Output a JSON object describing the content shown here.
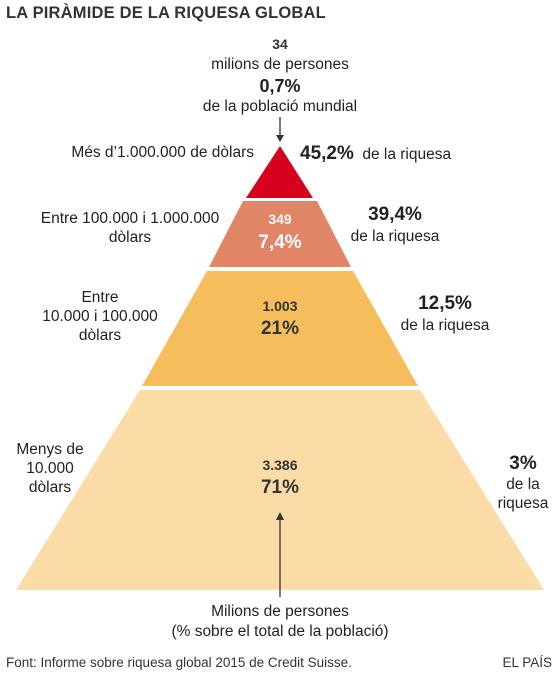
{
  "title": "LA PIRÀMIDE DE LA RIQUESA GLOBAL",
  "top_annotation": {
    "count": "34",
    "count_unit": "milions de persones",
    "share": "0,7%",
    "share_label": "de la població mundial"
  },
  "tiers": [
    {
      "wealth_range": "Més d’1.000.000 de dòlars",
      "wealth_share": "45,2%",
      "wealth_share_label": "de la riquesa",
      "color": "#d7001d"
    },
    {
      "wealth_range_line1": "Entre 100.000 i 1.000.000",
      "wealth_range_line2": "dòlars",
      "population": "349",
      "population_share": "7,4%",
      "wealth_share": "39,4%",
      "wealth_share_label": "de la riquesa",
      "color": "#e08566"
    },
    {
      "wealth_range_line1": "Entre",
      "wealth_range_line2": "10.000 i 100.000",
      "wealth_range_line3": "dòlars",
      "population": "1.003",
      "population_share": "21%",
      "wealth_share": "12,5%",
      "wealth_share_label": "de la riquesa",
      "color": "#f6bd5c"
    },
    {
      "wealth_range_line1": "Menys de",
      "wealth_range_line2": "10.000",
      "wealth_range_line3": "dòlars",
      "population": "3.386",
      "population_share": "71%",
      "wealth_share": "3%",
      "wealth_share_label_line1": "de la",
      "wealth_share_label_line2": "riquesa",
      "color": "#fbdba6"
    }
  ],
  "bottom_annotation": {
    "line1": "Milions de persones",
    "line2": "(% sobre el total de la població)"
  },
  "footer": {
    "source": "Font: Informe sobre riquesa global 2015 de Credit Suisse.",
    "credit": "EL PAÍS"
  }
}
